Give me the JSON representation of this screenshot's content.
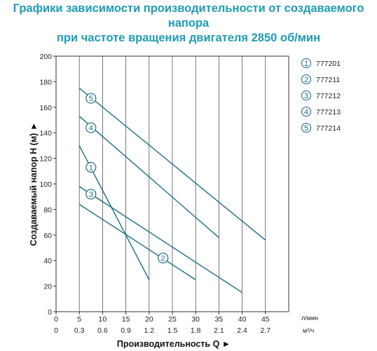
{
  "title_line1": "Графики зависимости производительности от создаваемого напора",
  "title_line2": "при частоте вращения двигателя 2850 об/мин",
  "chart_data": {
    "type": "line",
    "title": "Графики зависимости производительности от создаваемого напора при частоте вращения двигателя 2850 об/мин",
    "xlabel": "Производительность Q ►",
    "ylabel": "Создаваемый напор H (м) ►",
    "x_unit_primary": "л/мин",
    "x_unit_secondary": "м³/ч",
    "xlim": [
      0,
      50
    ],
    "ylim": [
      0,
      200
    ],
    "x_ticks": [
      "0",
      "5",
      "10",
      "15",
      "20",
      "25",
      "30",
      "35",
      "40",
      "45"
    ],
    "x_ticks_secondary": [
      "0",
      "0.3",
      "0.6",
      "0.9",
      "1.2",
      "1.5",
      "1.8",
      "2.1",
      "2.4",
      "2.7"
    ],
    "y_ticks": [
      "0",
      "20",
      "40",
      "60",
      "80",
      "100",
      "120",
      "140",
      "160",
      "180",
      "200"
    ],
    "grid": "vertical",
    "legend_position": "right",
    "line_color": "#1a6e83",
    "series": [
      {
        "name": "777201",
        "marker": "1",
        "x": [
          5,
          20
        ],
        "y": [
          130,
          25
        ],
        "label_at": [
          7.5,
          113
        ]
      },
      {
        "name": "777211",
        "marker": "2",
        "x": [
          5,
          30
        ],
        "y": [
          84,
          25
        ],
        "label_at": [
          23,
          42
        ]
      },
      {
        "name": "777212",
        "marker": "3",
        "x": [
          5,
          40
        ],
        "y": [
          98,
          15
        ],
        "label_at": [
          7.5,
          92
        ]
      },
      {
        "name": "777213",
        "marker": "4",
        "x": [
          5,
          35
        ],
        "y": [
          153,
          58
        ],
        "label_at": [
          7.5,
          144
        ]
      },
      {
        "name": "777214",
        "marker": "5",
        "x": [
          5,
          45
        ],
        "y": [
          175,
          56
        ],
        "label_at": [
          7.5,
          167
        ]
      }
    ]
  }
}
